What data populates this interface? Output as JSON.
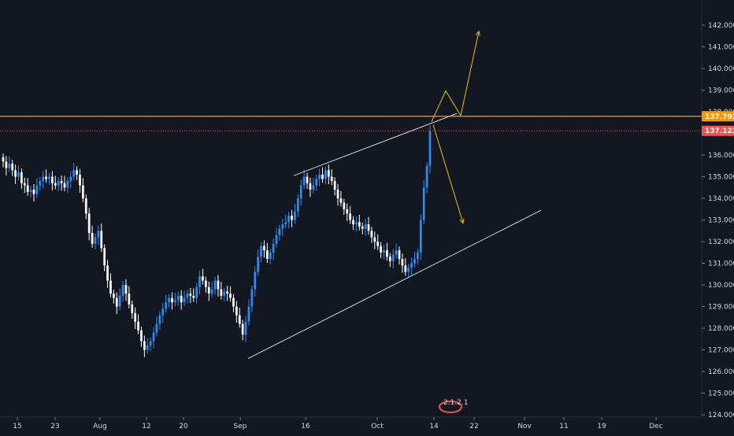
{
  "colors": {
    "background": "#131722",
    "candle_up": "#2d8cf0",
    "candle_down": "#ffffff",
    "resistance": "#ff9800",
    "last_price": "#ef5350",
    "trendline": "#d1d4dc",
    "projection": "#e5c300",
    "axis_text": "#d1d4dc"
  },
  "chart_data": {
    "type": "candlestick",
    "title": "",
    "xlabel": "",
    "ylabel": "",
    "ylim": [
      123.7,
      143.1
    ],
    "x_ticks": [
      "15",
      "23",
      "Aug",
      "12",
      "20",
      "Sep",
      "16",
      "Oct",
      "14",
      "22",
      "Nov",
      "11",
      "19",
      "Dec"
    ],
    "y_ticks": [
      "124.000",
      "125.000",
      "126.000",
      "127.000",
      "128.000",
      "129.000",
      "130.000",
      "131.000",
      "132.000",
      "133.000",
      "134.000",
      "135.000",
      "136.000",
      "137.000",
      "138.000",
      "139.000",
      "140.000",
      "141.000",
      "142.000"
    ],
    "closes": [
      135.7,
      135.4,
      135.6,
      135.3,
      135.0,
      135.2,
      134.7,
      134.6,
      134.3,
      134.4,
      134.2,
      134.6,
      134.8,
      135.0,
      134.9,
      135.0,
      134.7,
      134.6,
      134.8,
      134.7,
      134.5,
      134.8,
      135.0,
      135.3,
      135.1,
      134.6,
      134.0,
      133.3,
      132.4,
      131.9,
      132.2,
      132.5,
      131.7,
      130.9,
      130.2,
      129.6,
      129.4,
      129.0,
      129.5,
      130.0,
      129.6,
      129.1,
      128.7,
      128.3,
      127.9,
      127.4,
      127.0,
      127.2,
      127.4,
      127.8,
      128.2,
      128.6,
      128.9,
      129.2,
      129.4,
      129.2,
      129.3,
      129.5,
      129.2,
      129.4,
      129.6,
      129.5,
      129.4,
      129.9,
      130.4,
      130.2,
      129.9,
      129.6,
      129.8,
      130.2,
      129.8,
      129.5,
      129.7,
      129.6,
      129.4,
      129.0,
      128.6,
      128.2,
      127.7,
      128.3,
      129.0,
      129.8,
      130.6,
      131.3,
      131.8,
      131.6,
      131.2,
      131.5,
      131.9,
      132.3,
      132.6,
      132.8,
      132.9,
      133.2,
      133.0,
      133.4,
      134.0,
      134.6,
      135.0,
      134.7,
      134.4,
      134.6,
      134.9,
      135.1,
      134.9,
      135.3,
      135.0,
      134.8,
      134.4,
      134.0,
      133.8,
      133.5,
      133.3,
      133.0,
      132.8,
      132.9,
      132.7,
      132.6,
      132.8,
      132.5,
      132.2,
      132.0,
      131.8,
      131.5,
      131.6,
      131.3,
      131.1,
      131.4,
      131.6,
      131.2,
      130.9,
      130.6,
      130.8,
      131.0,
      131.2,
      131.5,
      133.0,
      134.5,
      135.5,
      137.1
    ],
    "resistance_price": 137.792,
    "last_price": 137.122,
    "resistance_label": "137.792",
    "last_price_label": "137.122",
    "watermark": "2.1.2.1"
  }
}
